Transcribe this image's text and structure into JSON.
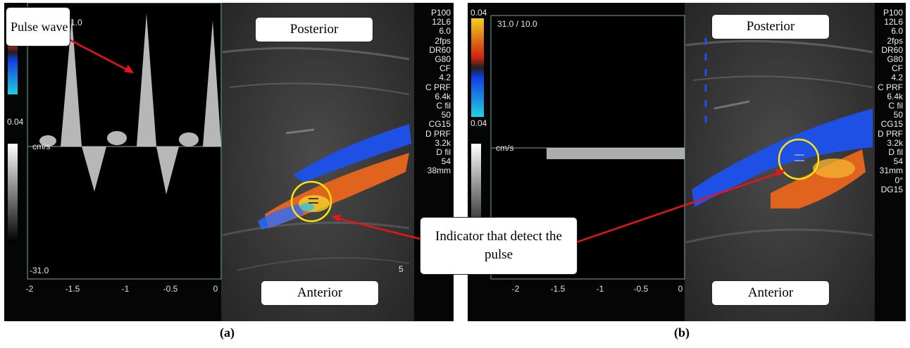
{
  "panel_a": {
    "scale_top": "0.04",
    "cf_readout": "1.0",
    "velocity_unit": "cm/s",
    "velocity_min": "-31.0",
    "time_ticks": [
      "-2",
      "-1.5",
      "-1",
      "-0.5",
      "0"
    ],
    "settings": [
      "P100",
      "12L6",
      "6.0",
      "2fps",
      "DR60",
      "G80",
      "CF",
      "4.2",
      "C PRF",
      "6.4k",
      "C fil",
      "50",
      "CG15",
      "D PRF",
      "3.2k",
      "D fil",
      "54",
      "38mm"
    ],
    "depth_marker": "5",
    "callout_pulse": "Pulse wave",
    "label_top": "Posterior",
    "label_bottom": "Anterior",
    "caption": "(a)"
  },
  "panel_b": {
    "scale_top": "0.04",
    "scale_mid": "0.04",
    "cf_readout": "31.0 / 10.0",
    "velocity_unit": "cm/s",
    "time_ticks": [
      "-2",
      "-1.5",
      "-1",
      "-0.5",
      "0"
    ],
    "settings": [
      "P100",
      "12L6",
      "6.0",
      "2fps",
      "DR60",
      "G80",
      "CF",
      "4.2",
      "C PRF",
      "6.4k",
      "C fil",
      "50",
      "CG15",
      "D PRF",
      "3.2k",
      "D fil",
      "54",
      "31mm",
      "0°",
      "DG15"
    ],
    "label_top": "Posterior",
    "label_bottom": "Anterior",
    "caption": "(b)"
  },
  "shared_callout": "Indicator that detect the pulse",
  "colors": {
    "arrow": "#e8141c",
    "indicator_circle": "#ffe600",
    "flow_blue": "#1e50e6",
    "flow_orange": "#e0641e",
    "border": "#6fa8a0"
  }
}
